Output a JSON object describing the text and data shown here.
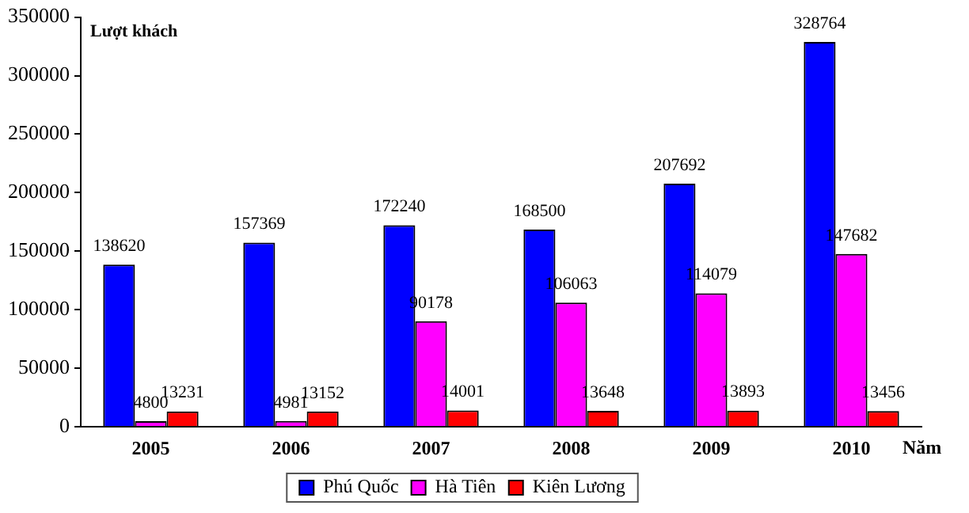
{
  "chart_data": {
    "type": "bar",
    "xlabel": "Năm",
    "ylabel": "Lượt khách",
    "categories": [
      "2005",
      "2006",
      "2007",
      "2008",
      "2009",
      "2010"
    ],
    "series": [
      {
        "name": "Phú Quốc",
        "color": "#0000ff",
        "values": [
          138620,
          157369,
          172240,
          168500,
          207692,
          328764
        ]
      },
      {
        "name": "Hà Tiên",
        "color": "#ff00ff",
        "values": [
          4800,
          4981,
          90178,
          106063,
          114079,
          147682
        ]
      },
      {
        "name": "Kiên Lương",
        "color": "#ff0000",
        "values": [
          13231,
          13152,
          14001,
          13648,
          13893,
          13456
        ]
      }
    ],
    "ylim": [
      0,
      350000
    ],
    "yticks": [
      0,
      50000,
      100000,
      150000,
      200000,
      250000,
      300000,
      350000
    ],
    "grid": false,
    "legend": "bottom",
    "data_labels": true
  }
}
